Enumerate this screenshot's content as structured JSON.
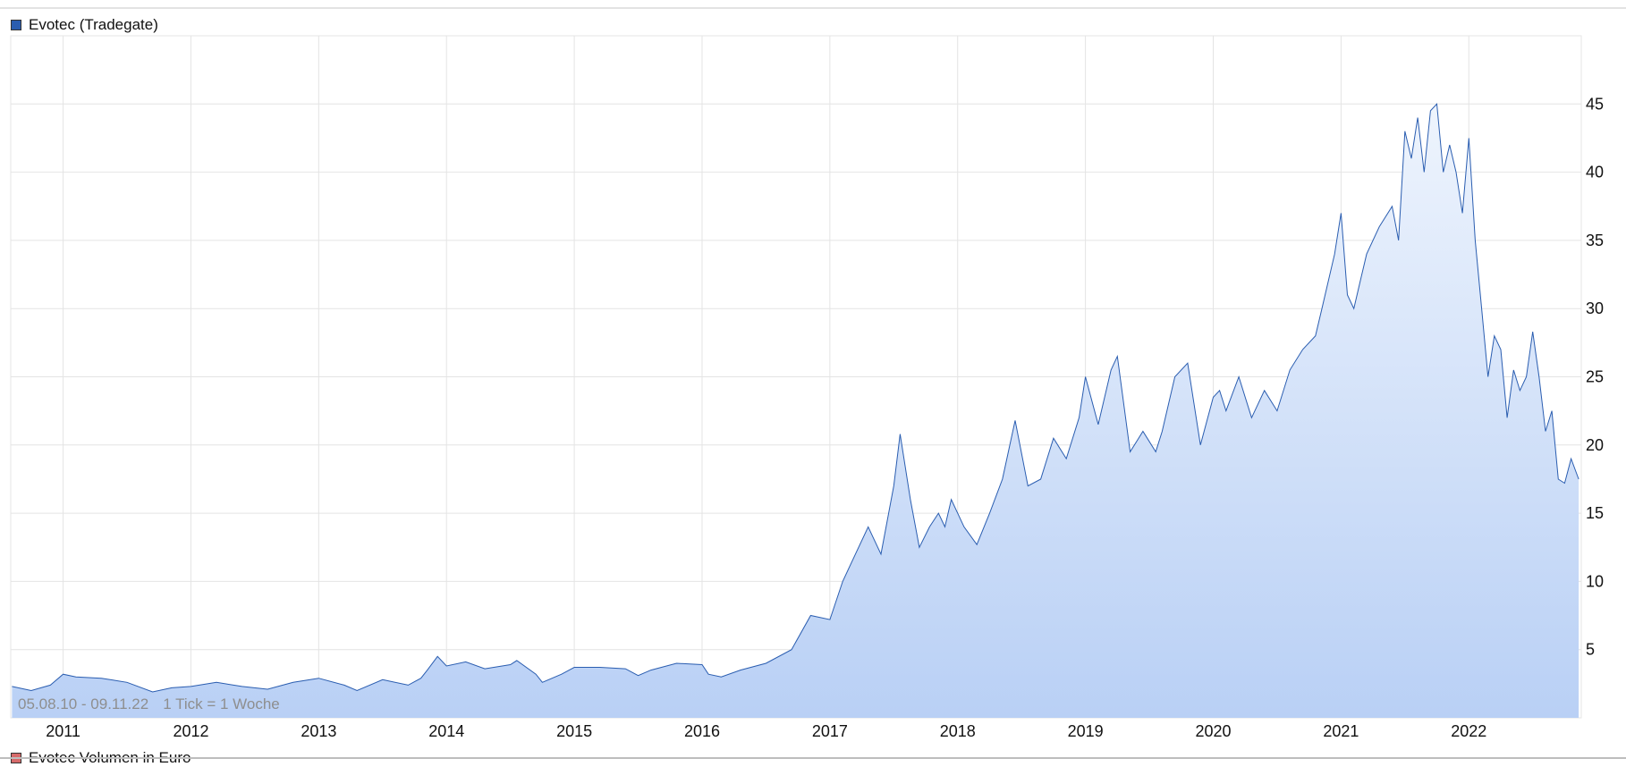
{
  "legend": {
    "main_label": "Evotec (Tradegate)",
    "main_color": "#2a5db0",
    "volume_label": "Evotec Volumen in Euro",
    "volume_color": "#d66a6a"
  },
  "info": {
    "date_range": "05.08.10 - 09.11.22",
    "tick_label": "1 Tick = 1 Woche"
  },
  "chart_data": {
    "type": "area",
    "series": [
      {
        "name": "Evotec (Tradegate)",
        "x": [
          2010.6,
          2010.75,
          2010.9,
          2011.0,
          2011.1,
          2011.3,
          2011.5,
          2011.7,
          2011.85,
          2012.0,
          2012.2,
          2012.4,
          2012.6,
          2012.8,
          2013.0,
          2013.2,
          2013.3,
          2013.5,
          2013.7,
          2013.8,
          2013.85,
          2013.93,
          2014.0,
          2014.15,
          2014.3,
          2014.5,
          2014.55,
          2014.7,
          2014.75,
          2014.9,
          2015.0,
          2015.2,
          2015.4,
          2015.5,
          2015.6,
          2015.8,
          2016.0,
          2016.05,
          2016.15,
          2016.3,
          2016.5,
          2016.7,
          2016.85,
          2017.0,
          2017.1,
          2017.2,
          2017.3,
          2017.4,
          2017.5,
          2017.55,
          2017.63,
          2017.7,
          2017.78,
          2017.85,
          2017.9,
          2017.95,
          2018.05,
          2018.15,
          2018.25,
          2018.35,
          2018.45,
          2018.55,
          2018.65,
          2018.75,
          2018.85,
          2018.95,
          2019.0,
          2019.1,
          2019.2,
          2019.25,
          2019.35,
          2019.45,
          2019.55,
          2019.6,
          2019.7,
          2019.8,
          2019.9,
          2020.0,
          2020.05,
          2020.1,
          2020.2,
          2020.3,
          2020.4,
          2020.5,
          2020.6,
          2020.7,
          2020.8,
          2020.85,
          2020.95,
          2021.0,
          2021.05,
          2021.1,
          2021.15,
          2021.2,
          2021.3,
          2021.4,
          2021.45,
          2021.5,
          2021.55,
          2021.6,
          2021.65,
          2021.7,
          2021.75,
          2021.8,
          2021.85,
          2021.9,
          2021.95,
          2022.0,
          2022.05,
          2022.1,
          2022.15,
          2022.2,
          2022.25,
          2022.3,
          2022.35,
          2022.4,
          2022.45,
          2022.5,
          2022.55,
          2022.6,
          2022.65,
          2022.7,
          2022.75,
          2022.8,
          2022.86
        ],
        "y": [
          2.3,
          2.0,
          2.4,
          3.2,
          3.0,
          2.9,
          2.6,
          1.9,
          2.2,
          2.3,
          2.6,
          2.3,
          2.1,
          2.6,
          2.9,
          2.4,
          2.0,
          2.8,
          2.4,
          2.9,
          3.5,
          4.5,
          3.8,
          4.1,
          3.6,
          3.9,
          4.2,
          3.2,
          2.6,
          3.2,
          3.7,
          3.7,
          3.6,
          3.1,
          3.5,
          4.0,
          3.9,
          3.2,
          3.0,
          3.5,
          4.0,
          5.0,
          7.5,
          7.2,
          10.0,
          12.0,
          14.0,
          12.0,
          17.0,
          20.8,
          16.0,
          12.5,
          14.0,
          15.0,
          14.0,
          16.0,
          14.0,
          12.7,
          15.0,
          17.5,
          21.8,
          17.0,
          17.5,
          20.5,
          19.0,
          22.0,
          25.0,
          21.5,
          25.5,
          26.5,
          19.5,
          21.0,
          19.5,
          21.0,
          25.0,
          26.0,
          20.0,
          23.5,
          24.0,
          22.5,
          25.0,
          22.0,
          24.0,
          22.5,
          25.5,
          27.0,
          28.0,
          30.0,
          34.0,
          37.0,
          31.0,
          30.0,
          32.0,
          34.0,
          36.0,
          37.5,
          35.0,
          43.0,
          41.0,
          44.0,
          40.0,
          44.5,
          45.0,
          40.0,
          42.0,
          40.0,
          37.0,
          42.5,
          35.0,
          30.0,
          25.0,
          28.0,
          27.0,
          22.0,
          25.5,
          24.0,
          25.0,
          28.3,
          25.0,
          21.0,
          22.5,
          17.5,
          17.2,
          19.0,
          17.5
        ]
      }
    ],
    "x_ticks": [
      "2011",
      "2012",
      "2013",
      "2014",
      "2015",
      "2016",
      "2017",
      "2018",
      "2019",
      "2020",
      "2021",
      "2022"
    ],
    "x_tick_values": [
      2011,
      2012,
      2013,
      2014,
      2015,
      2016,
      2017,
      2018,
      2019,
      2020,
      2021,
      2022
    ],
    "y_ticks": [
      "5",
      "10",
      "15",
      "20",
      "25",
      "30",
      "35",
      "40",
      "45"
    ],
    "y_tick_values": [
      5,
      10,
      15,
      20,
      25,
      30,
      35,
      40,
      45
    ],
    "xlim": [
      2010.59,
      2022.88
    ],
    "ylim": [
      0,
      50
    ],
    "grid": true,
    "legend_position": "top-left",
    "line_color": "#2a5db0",
    "fill_top_color": "#eef4fd",
    "fill_bottom_color": "#b9d0f5"
  }
}
